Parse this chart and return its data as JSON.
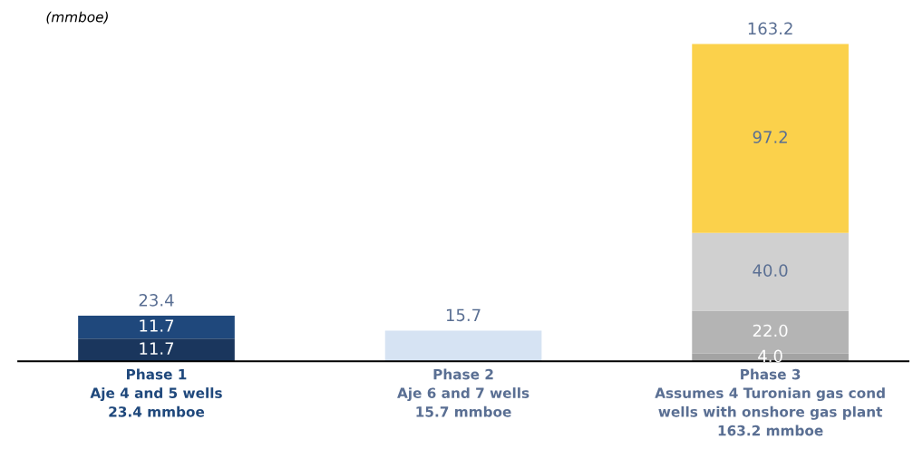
{
  "chart_data": {
    "type": "bar",
    "stacked": true,
    "ylabel": "(mmboe)",
    "categories": [
      "Phase 1\nAje 4 and 5 wells\n23.4 mmboe",
      "Phase 2\nAje 6 and 7 wells\n15.7 mmboe",
      "Phase 3\nAssumes 4 Turonian gas cond\nwells with onshore gas plant\n163.2 mmboe"
    ],
    "series": [
      {
        "colors": [
          "#1a365d",
          "#d6e3f3",
          "#a3a3a3"
        ],
        "values": [
          11.7,
          15.7,
          4.0
        ],
        "value_labels": [
          "11.7",
          null,
          "4.0"
        ]
      },
      {
        "colors": [
          "#1f487c",
          null,
          "#b4b4b4"
        ],
        "values": [
          11.7,
          null,
          22.0
        ],
        "value_labels": [
          "11.7",
          null,
          "22.0"
        ]
      },
      {
        "colors": [
          null,
          null,
          "#d0d0d0"
        ],
        "values": [
          null,
          null,
          40.0
        ],
        "value_labels": [
          null,
          null,
          "40.0"
        ]
      },
      {
        "colors": [
          null,
          null,
          "#fbd14b"
        ],
        "values": [
          null,
          null,
          97.2
        ],
        "value_labels": [
          null,
          null,
          "97.2"
        ]
      }
    ],
    "totals": [
      "23.4",
      "15.7",
      "163.2"
    ],
    "grid": false,
    "legend": false
  }
}
